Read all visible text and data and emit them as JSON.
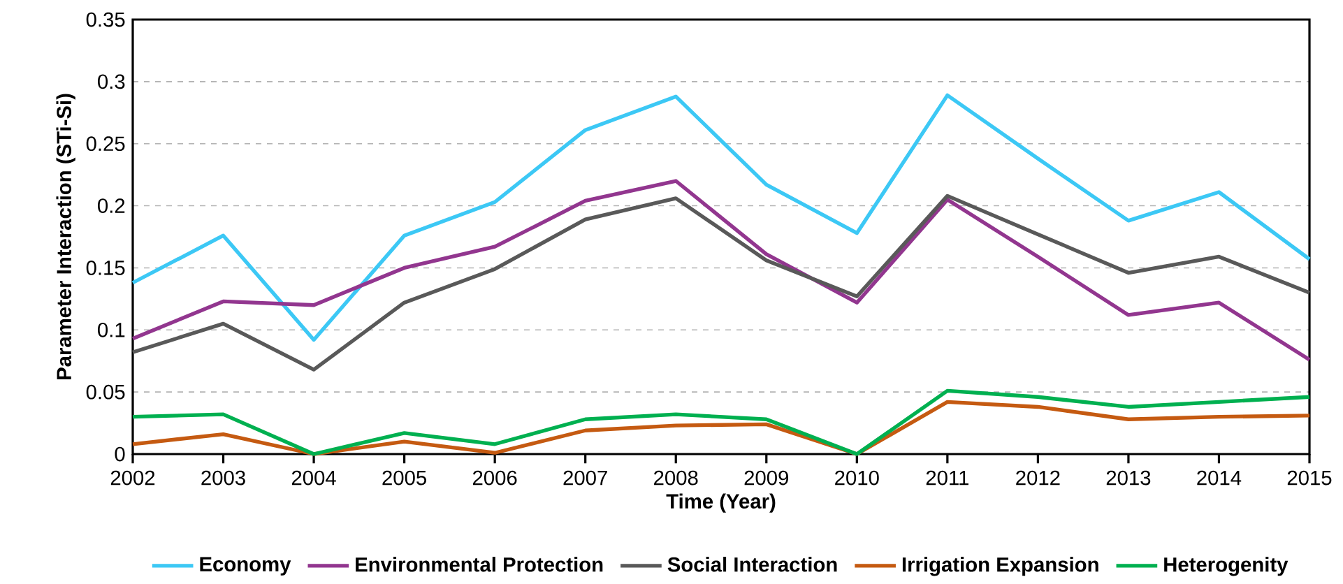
{
  "chart_data": {
    "type": "line",
    "xlabel": "Time (Year)",
    "ylabel": "Parameter Interaction (STi-Si)",
    "x": [
      2002,
      2003,
      2004,
      2005,
      2006,
      2007,
      2008,
      2009,
      2010,
      2011,
      2012,
      2013,
      2014,
      2015
    ],
    "xlim": [
      2002,
      2015
    ],
    "xticks": [
      2002,
      2003,
      2004,
      2005,
      2006,
      2007,
      2008,
      2009,
      2010,
      2011,
      2012,
      2013,
      2014,
      2015
    ],
    "ylim": [
      0,
      0.35
    ],
    "yticks": [
      0,
      0.05,
      0.1,
      0.15,
      0.2,
      0.25,
      0.3,
      0.35
    ],
    "grid": "y",
    "legend": "bottom",
    "marker": "none",
    "line_style": "solid",
    "series": [
      {
        "name": "Economy",
        "color": "#3cc8f5",
        "values": [
          0.138,
          0.176,
          0.092,
          0.176,
          0.203,
          0.261,
          0.288,
          0.217,
          0.178,
          0.289,
          0.238,
          0.188,
          0.211,
          0.157
        ]
      },
      {
        "name": "Environmental Protection",
        "color": "#92368f",
        "values": [
          0.093,
          0.123,
          0.12,
          0.15,
          0.167,
          0.204,
          0.22,
          0.161,
          0.122,
          0.205,
          0.159,
          0.112,
          0.122,
          0.076
        ]
      },
      {
        "name": "Social Interaction",
        "color": "#595959",
        "values": [
          0.082,
          0.105,
          0.068,
          0.122,
          0.149,
          0.189,
          0.206,
          0.156,
          0.127,
          0.208,
          0.177,
          0.146,
          0.159,
          0.13
        ]
      },
      {
        "name": "Irrigation Expansion",
        "color": "#c55a11",
        "values": [
          0.008,
          0.016,
          0,
          0.01,
          0.001,
          0.019,
          0.023,
          0.024,
          0,
          0.042,
          0.038,
          0.028,
          0.03,
          0.031
        ]
      },
      {
        "name": "Heterogenity",
        "color": "#00b050",
        "values": [
          0.03,
          0.032,
          0,
          0.017,
          0.008,
          0.028,
          0.032,
          0.028,
          0,
          0.051,
          0.046,
          0.038,
          0.042,
          0.046
        ]
      }
    ]
  }
}
